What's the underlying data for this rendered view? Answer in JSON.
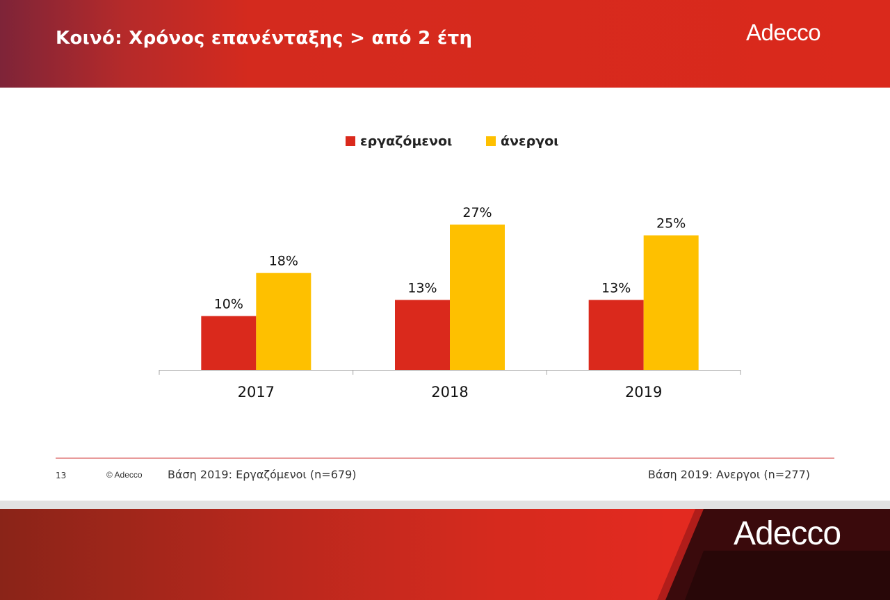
{
  "header": {
    "title": "Κοινό: Χρόνος επανένταξης > από 2 έτη",
    "logo": "Adecco"
  },
  "legend": [
    {
      "label": "εργαζόμενοι",
      "color": "#da291c"
    },
    {
      "label": "άνεργοι",
      "color": "#fec000"
    }
  ],
  "chart_data": {
    "type": "bar",
    "categories": [
      "2017",
      "2018",
      "2019"
    ],
    "series": [
      {
        "name": "εργαζόμενοι",
        "values": [
          10,
          13,
          13
        ],
        "labels": [
          "10%",
          "13%",
          "13%"
        ],
        "color": "#da291c"
      },
      {
        "name": "άνεργοι",
        "values": [
          18,
          27,
          25
        ],
        "labels": [
          "18%",
          "27%",
          "25%"
        ],
        "color": "#fec000"
      }
    ],
    "title": "",
    "xlabel": "",
    "ylabel": "",
    "ylim": [
      0,
      30
    ],
    "grid": false,
    "legend_position": "top"
  },
  "footer": {
    "page_number": "13",
    "copyright": "© Adecco",
    "base_left": "Βάση 2019: Εργαζόμενοι (n=679)",
    "base_right": "Βάση 2019: Ανεργοι (n=277)"
  },
  "bottom_logo": "Adecco"
}
